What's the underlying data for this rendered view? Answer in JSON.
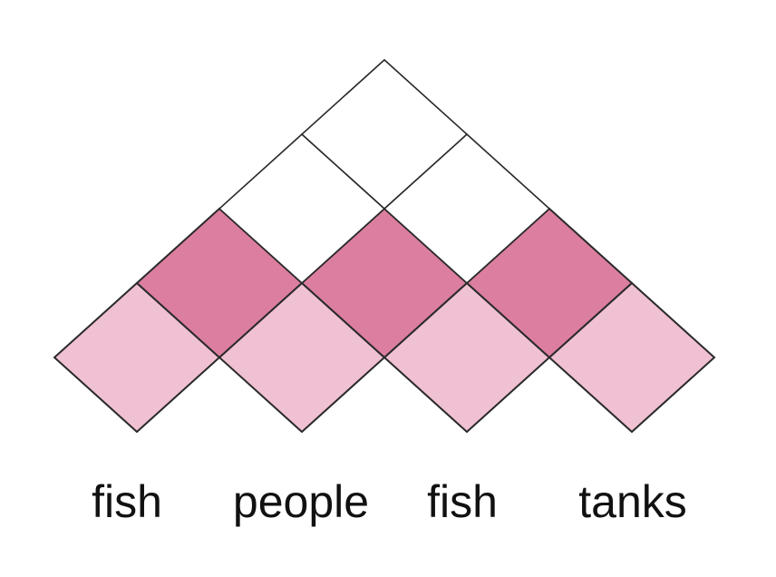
{
  "words": [
    "fish",
    "people",
    "fish",
    "tanks"
  ],
  "chart_levels": [
    {
      "level": 1,
      "cells": [
        "filled",
        "filled",
        "filled",
        "filled"
      ],
      "color": "#f0c0d3"
    },
    {
      "level": 2,
      "cells": [
        "filled",
        "filled",
        "filled"
      ],
      "color": "#dc7ea0"
    },
    {
      "level": 3,
      "cells": [
        "empty",
        "empty"
      ],
      "color": "#ffffff"
    },
    {
      "level": 4,
      "cells": [
        "empty"
      ],
      "color": "#ffffff"
    }
  ],
  "colors": {
    "light_pink": "#f0c0d3",
    "dark_pink": "#dc7ea0",
    "outline": "#2a2a2a",
    "empty": "#ffffff"
  }
}
